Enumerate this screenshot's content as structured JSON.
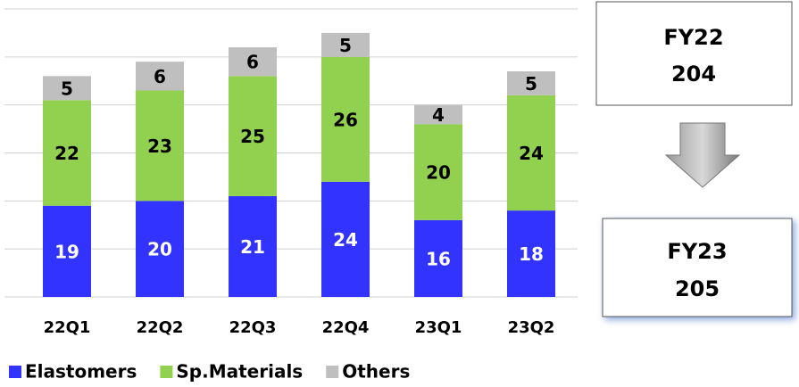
{
  "chart_data": {
    "type": "stacked_bar",
    "categories": [
      "22Q1",
      "22Q2",
      "22Q3",
      "22Q4",
      "23Q1",
      "23Q2"
    ],
    "series": [
      {
        "name": "Elastomers",
        "color": "#3333ff",
        "label_color": "#ffffff",
        "values": [
          19,
          20,
          21,
          24,
          16,
          18
        ]
      },
      {
        "name": "Sp.Materials",
        "color": "#92d050",
        "label_color": "#000000",
        "values": [
          22,
          23,
          25,
          26,
          20,
          24
        ]
      },
      {
        "name": "Others",
        "color": "#bfbfbf",
        "label_color": "#000000",
        "values": [
          5,
          6,
          6,
          5,
          4,
          5
        ]
      }
    ],
    "ylim": [
      0,
      60
    ],
    "yticks": [
      0,
      10,
      20,
      30,
      40,
      50,
      60
    ],
    "grid": true,
    "legend": "bottom",
    "summary": [
      {
        "period": "FY22",
        "total": 204
      },
      {
        "period": "FY23",
        "total": 205
      }
    ]
  }
}
